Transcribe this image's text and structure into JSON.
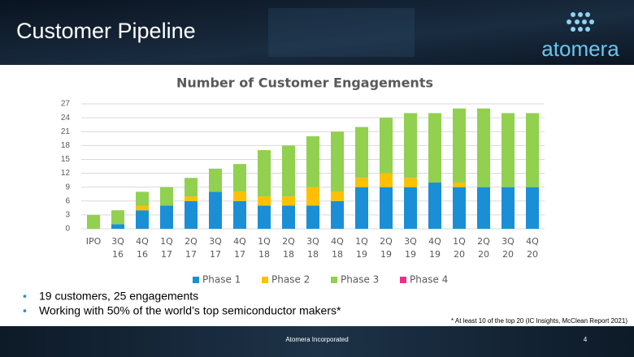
{
  "header": {
    "title": "Customer Pipeline",
    "logo": "atomera"
  },
  "chart_data": {
    "type": "stacked_bar",
    "title": "Number of Customer Engagements",
    "categories": [
      "IPO",
      "3Q 16",
      "4Q 16",
      "1Q 17",
      "2Q 17",
      "3Q 17",
      "4Q 17",
      "1Q 18",
      "2Q 18",
      "3Q 18",
      "4Q 18",
      "1Q 19",
      "2Q 19",
      "3Q 19",
      "4Q 19",
      "1Q 20",
      "2Q 20",
      "3Q 20",
      "4Q 20"
    ],
    "series": [
      {
        "name": "Phase 1",
        "color": "#1b8fd6",
        "values": [
          0,
          1,
          4,
          5,
          6,
          8,
          6,
          5,
          5,
          5,
          6,
          9,
          9,
          9,
          10,
          9,
          9,
          9,
          9
        ]
      },
      {
        "name": "Phase 2",
        "color": "#ffc000",
        "values": [
          0,
          0,
          1,
          0,
          1,
          0,
          2,
          2,
          2,
          4,
          2,
          2,
          3,
          2,
          0,
          1,
          0,
          0,
          0
        ]
      },
      {
        "name": "Phase 3",
        "color": "#92d050",
        "values": [
          3,
          3,
          3,
          4,
          4,
          5,
          6,
          10,
          11,
          11,
          13,
          11,
          12,
          14,
          15,
          16,
          17,
          16,
          16
        ]
      },
      {
        "name": "Phase 4",
        "color": "#e8308a",
        "values": [
          0,
          0,
          0,
          0,
          0,
          0,
          0,
          0,
          0,
          0,
          0,
          0,
          0,
          0,
          0,
          0,
          0,
          0,
          0
        ]
      }
    ],
    "ylim": [
      0,
      27
    ],
    "yticks": [
      0,
      3,
      6,
      9,
      12,
      15,
      18,
      21,
      24,
      27
    ],
    "grid": true,
    "legend": "bottom"
  },
  "bullets": [
    "19 customers, 25 engagements",
    "Working with 50% of the world’s top semiconductor makers*"
  ],
  "footnote": "* At least 10 of the top 20 (IC Insights, McClean Report 2021)",
  "footer": {
    "text": "Atomera Incorporated",
    "page": "4"
  }
}
